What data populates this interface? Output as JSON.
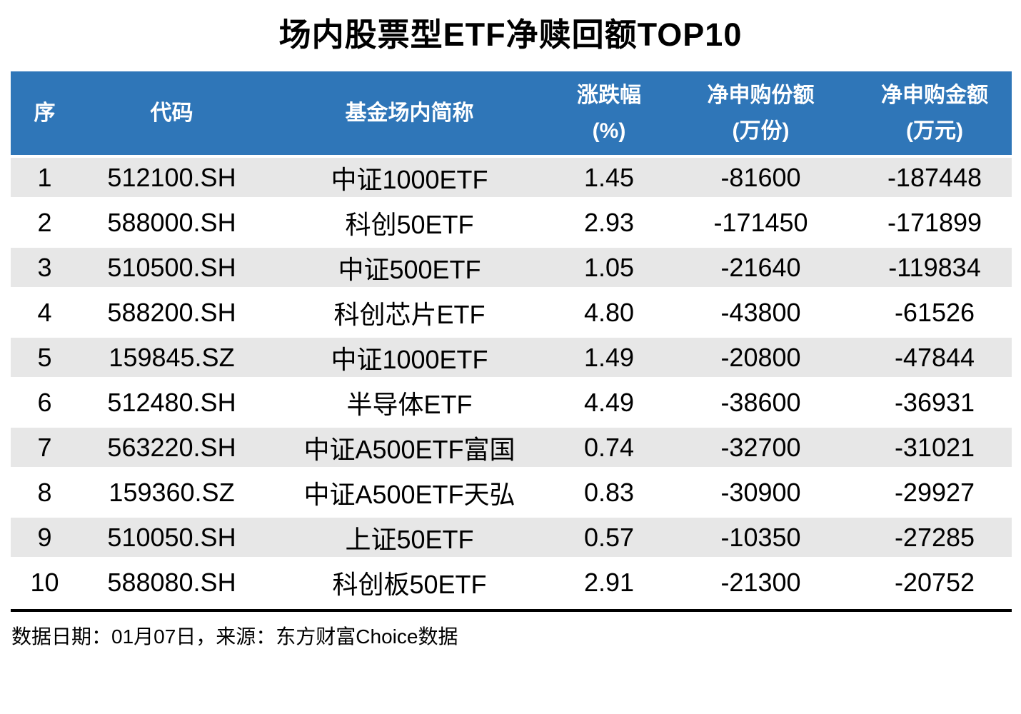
{
  "title": "场内股票型ETF净赎回额TOP10",
  "colors": {
    "header_bg": "#2F76B8",
    "header_text": "#FFFFFF",
    "row_stripe": "#E7E7E7",
    "divider": "#000000"
  },
  "table": {
    "headers": [
      {
        "line1": "序",
        "line2": ""
      },
      {
        "line1": "代码",
        "line2": ""
      },
      {
        "line1": "基金场内简称",
        "line2": ""
      },
      {
        "line1": "涨跌幅",
        "line2": "(%)"
      },
      {
        "line1": "净申购份额",
        "line2": "(万份)"
      },
      {
        "line1": "净申购金额",
        "line2": "(万元)"
      }
    ],
    "rows": [
      {
        "rank": "1",
        "code": "512100.SH",
        "name": "中证1000ETF",
        "change_pct": "1.45",
        "net_shares": "-81600",
        "net_amount": "-187448"
      },
      {
        "rank": "2",
        "code": "588000.SH",
        "name": "科创50ETF",
        "change_pct": "2.93",
        "net_shares": "-171450",
        "net_amount": "-171899"
      },
      {
        "rank": "3",
        "code": "510500.SH",
        "name": "中证500ETF",
        "change_pct": "1.05",
        "net_shares": "-21640",
        "net_amount": "-119834"
      },
      {
        "rank": "4",
        "code": "588200.SH",
        "name": "科创芯片ETF",
        "change_pct": "4.80",
        "net_shares": "-43800",
        "net_amount": "-61526"
      },
      {
        "rank": "5",
        "code": "159845.SZ",
        "name": "中证1000ETF",
        "change_pct": "1.49",
        "net_shares": "-20800",
        "net_amount": "-47844"
      },
      {
        "rank": "6",
        "code": "512480.SH",
        "name": "半导体ETF",
        "change_pct": "4.49",
        "net_shares": "-38600",
        "net_amount": "-36931"
      },
      {
        "rank": "7",
        "code": "563220.SH",
        "name": "中证A500ETF富国",
        "change_pct": "0.74",
        "net_shares": "-32700",
        "net_amount": "-31021"
      },
      {
        "rank": "8",
        "code": "159360.SZ",
        "name": "中证A500ETF天弘",
        "change_pct": "0.83",
        "net_shares": "-30900",
        "net_amount": "-29927"
      },
      {
        "rank": "9",
        "code": "510050.SH",
        "name": "上证50ETF",
        "change_pct": "0.57",
        "net_shares": "-10350",
        "net_amount": "-27285"
      },
      {
        "rank": "10",
        "code": "588080.SH",
        "name": "科创板50ETF",
        "change_pct": "2.91",
        "net_shares": "-21300",
        "net_amount": "-20752"
      }
    ]
  },
  "footer": {
    "text": "数据日期：01月07日，来源：东方财富Choice数据"
  },
  "chart_data": {
    "type": "table",
    "title": "场内股票型ETF净赎回额TOP10",
    "columns": [
      "序",
      "代码",
      "基金场内简称",
      "涨跌幅(%)",
      "净申购份额(万份)",
      "净申购金额(万元)"
    ],
    "rows": [
      [
        "1",
        "512100.SH",
        "中证1000ETF",
        1.45,
        -81600,
        -187448
      ],
      [
        "2",
        "588000.SH",
        "科创50ETF",
        2.93,
        -171450,
        -171899
      ],
      [
        "3",
        "510500.SH",
        "中证500ETF",
        1.05,
        -21640,
        -119834
      ],
      [
        "4",
        "588200.SH",
        "科创芯片ETF",
        4.8,
        -43800,
        -61526
      ],
      [
        "5",
        "159845.SZ",
        "中证1000ETF",
        1.49,
        -20800,
        -47844
      ],
      [
        "6",
        "512480.SH",
        "半导体ETF",
        4.49,
        -38600,
        -36931
      ],
      [
        "7",
        "563220.SH",
        "中证A500ETF富国",
        0.74,
        -32700,
        -31021
      ],
      [
        "8",
        "159360.SZ",
        "中证A500ETF天弘",
        0.83,
        -30900,
        -29927
      ],
      [
        "9",
        "510050.SH",
        "上证50ETF",
        0.57,
        -10350,
        -27285
      ],
      [
        "10",
        "588080.SH",
        "科创板50ETF",
        2.91,
        -21300,
        -20752
      ]
    ],
    "source_note": "数据日期：01月07日，来源：东方财富Choice数据"
  }
}
